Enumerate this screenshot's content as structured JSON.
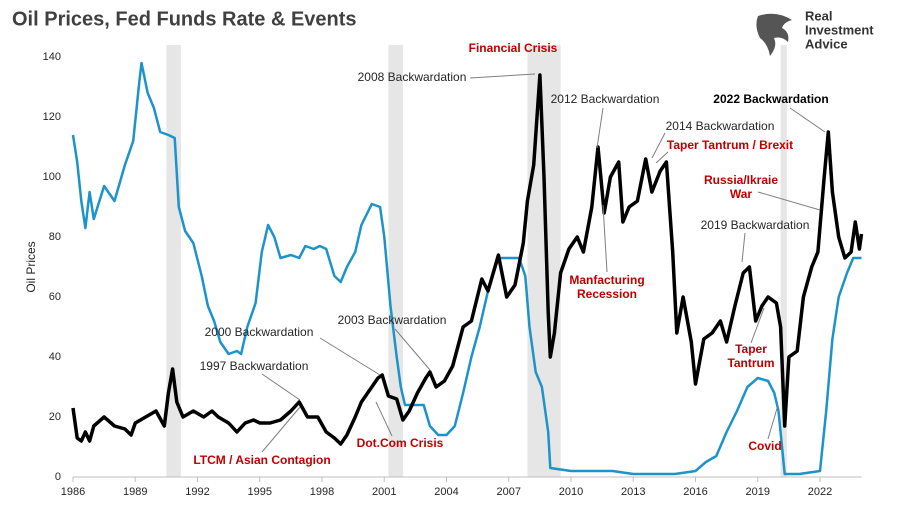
{
  "chart_data": {
    "type": "line",
    "title": "Oil Prices, Fed Funds Rate & Events",
    "ylabel": "Oil Prices",
    "logo": [
      "Real",
      "Investment",
      "Advice"
    ],
    "xlim": [
      1986,
      2024
    ],
    "xticks": [
      1986,
      1989,
      1992,
      1995,
      1998,
      2001,
      2004,
      2007,
      2010,
      2013,
      2016,
      2019,
      2022
    ],
    "ylim": [
      0,
      140
    ],
    "yticks": [
      0,
      20,
      40,
      60,
      80,
      100,
      120,
      140
    ],
    "grid": false,
    "shading_color": "#e6e6e6",
    "shaded_periods": [
      [
        1990.5,
        1991.2
      ],
      [
        2001.2,
        2001.9
      ],
      [
        2007.9,
        2009.5
      ],
      [
        2020.1,
        2020.4
      ]
    ],
    "series": [
      {
        "color": "#1c93c9",
        "x": [
          1986.0,
          1986.2,
          1986.4,
          1986.6,
          1986.8,
          1987.0,
          1987.5,
          1988.0,
          1988.5,
          1988.9,
          1989.2,
          1989.3,
          1989.6,
          1989.9,
          1990.2,
          1990.6,
          1990.9,
          1991.1,
          1991.4,
          1991.8,
          1992.2,
          1992.5,
          1992.8,
          1993.1,
          1993.5,
          1993.9,
          1994.1,
          1994.4,
          1994.8,
          1995.1,
          1995.4,
          1995.7,
          1996.0,
          1996.5,
          1996.9,
          1997.2,
          1997.6,
          1997.9,
          1998.2,
          1998.6,
          1998.9,
          1999.2,
          1999.6,
          1999.9,
          2000.4,
          2000.8,
          2001.0,
          2001.3,
          2001.6,
          2001.8,
          2002.0,
          2002.5,
          2002.9,
          2003.2,
          2003.6,
          2004.0,
          2004.4,
          2004.8,
          2005.2,
          2005.6,
          2006.0,
          2006.5,
          2007.0,
          2007.5,
          2007.8,
          2008.0,
          2008.3,
          2008.6,
          2008.9,
          2009.0,
          2010.0,
          2011.0,
          2012.0,
          2013.0,
          2014.0,
          2015.0,
          2016.0,
          2016.5,
          2017.0,
          2017.5,
          2018.0,
          2018.5,
          2019.0,
          2019.5,
          2019.8,
          2020.0,
          2020.3,
          2021.0,
          2022.0,
          2022.3,
          2022.6,
          2022.9,
          2023.3,
          2023.6,
          2024.0
        ],
        "values": [
          114,
          105,
          92,
          83,
          95,
          86,
          97,
          92,
          104,
          112,
          132,
          138,
          128,
          123,
          115,
          114,
          113,
          90,
          82,
          78,
          67,
          57,
          52,
          45,
          41,
          42,
          41,
          50,
          58,
          75,
          84,
          80,
          73,
          74,
          73,
          77,
          76,
          77,
          76,
          67,
          65,
          70,
          75,
          84,
          91,
          90,
          80,
          57,
          40,
          30,
          24,
          24,
          24,
          17,
          14,
          14,
          17,
          28,
          40,
          50,
          62,
          73,
          73,
          73,
          67,
          50,
          35,
          30,
          15,
          3,
          2,
          2,
          2,
          1,
          1,
          1,
          2,
          5,
          7,
          15,
          22,
          30,
          33,
          32,
          28,
          22,
          1,
          1,
          2,
          22,
          46,
          60,
          68,
          73,
          73
        ]
      },
      {
        "color": "#000000",
        "x": [
          1986.0,
          1986.2,
          1986.4,
          1986.6,
          1986.8,
          1987.0,
          1987.5,
          1988.0,
          1988.5,
          1988.8,
          1989.0,
          1989.5,
          1990.0,
          1990.4,
          1990.6,
          1990.8,
          1991.0,
          1991.3,
          1991.8,
          1992.3,
          1992.7,
          1993.0,
          1993.5,
          1993.9,
          1994.3,
          1994.7,
          1995.0,
          1995.5,
          1996.0,
          1996.5,
          1996.9,
          1997.3,
          1997.8,
          1998.2,
          1998.6,
          1998.9,
          1999.2,
          1999.6,
          1999.9,
          2000.3,
          2000.7,
          2000.9,
          2001.2,
          2001.6,
          2001.9,
          2002.2,
          2002.6,
          2003.0,
          2003.2,
          2003.5,
          2003.9,
          2004.3,
          2004.8,
          2005.2,
          2005.7,
          2006.0,
          2006.5,
          2006.9,
          2007.3,
          2007.7,
          2007.9,
          2008.2,
          2008.5,
          2008.7,
          2008.9,
          2009.0,
          2009.2,
          2009.5,
          2009.9,
          2010.3,
          2010.6,
          2011.0,
          2011.3,
          2011.6,
          2011.9,
          2012.3,
          2012.5,
          2012.8,
          2013.2,
          2013.6,
          2013.9,
          2014.3,
          2014.6,
          2014.9,
          2015.1,
          2015.4,
          2015.8,
          2016.0,
          2016.4,
          2016.8,
          2017.2,
          2017.5,
          2017.9,
          2018.3,
          2018.6,
          2018.9,
          2019.2,
          2019.5,
          2019.9,
          2020.1,
          2020.3,
          2020.5,
          2020.9,
          2021.2,
          2021.6,
          2021.9,
          2022.2,
          2022.4,
          2022.6,
          2022.9,
          2023.2,
          2023.5,
          2023.7,
          2023.9,
          2024.0
        ],
        "values": [
          23,
          13,
          12,
          15,
          12,
          17,
          20,
          17,
          16,
          14,
          18,
          20,
          22,
          17,
          28,
          36,
          25,
          20,
          22,
          20,
          22,
          20,
          18,
          15,
          18,
          19,
          18,
          18,
          19,
          22,
          25,
          20,
          20,
          15,
          13,
          11,
          14,
          20,
          25,
          29,
          33,
          34,
          27,
          26,
          19,
          22,
          28,
          33,
          35,
          30,
          32,
          37,
          50,
          52,
          66,
          62,
          74,
          60,
          64,
          78,
          92,
          104,
          134,
          100,
          55,
          40,
          48,
          68,
          76,
          80,
          75,
          90,
          110,
          88,
          100,
          105,
          85,
          90,
          92,
          106,
          95,
          102,
          105,
          75,
          48,
          60,
          45,
          31,
          46,
          48,
          52,
          45,
          57,
          68,
          70,
          52,
          57,
          60,
          58,
          50,
          17,
          40,
          42,
          60,
          70,
          75,
          100,
          115,
          95,
          80,
          73,
          75,
          85,
          76,
          81
        ]
      }
    ],
    "annotations": [
      {
        "lines": [
          "Financial Crisis"
        ],
        "color": "#c00000"
      },
      {
        "lines": [
          "2008 Backwardation"
        ],
        "color": "#262626"
      },
      {
        "lines": [
          "2012 Backwardation"
        ],
        "color": "#262626"
      },
      {
        "lines": [
          "2014 Backwardation"
        ],
        "color": "#262626"
      },
      {
        "lines": [
          "Taper Tantrum / Brexit"
        ],
        "color": "#c00000"
      },
      {
        "lines": [
          "2022 Backwardation"
        ],
        "color": "#000000"
      },
      {
        "lines": [
          "Russia/Ikraie",
          "War"
        ],
        "color": "#c00000"
      },
      {
        "lines": [
          "2019 Backwardation"
        ],
        "color": "#262626"
      },
      {
        "lines": [
          "Manfacturing",
          "Recession"
        ],
        "color": "#c00000"
      },
      {
        "lines": [
          "Taper",
          "Tantrum"
        ],
        "color": "#c00000"
      },
      {
        "lines": [
          "Covid"
        ],
        "color": "#c00000"
      },
      {
        "lines": [
          "2000 Backwardation"
        ],
        "color": "#262626"
      },
      {
        "lines": [
          "2003 Backwardation"
        ],
        "color": "#262626"
      },
      {
        "lines": [
          "1997 Backwardation"
        ],
        "color": "#262626"
      },
      {
        "lines": [
          "LTCM / Asian Contagion"
        ],
        "color": "#c00000"
      },
      {
        "lines": [
          "Dot.Com Crisis"
        ],
        "color": "#c00000"
      }
    ]
  }
}
